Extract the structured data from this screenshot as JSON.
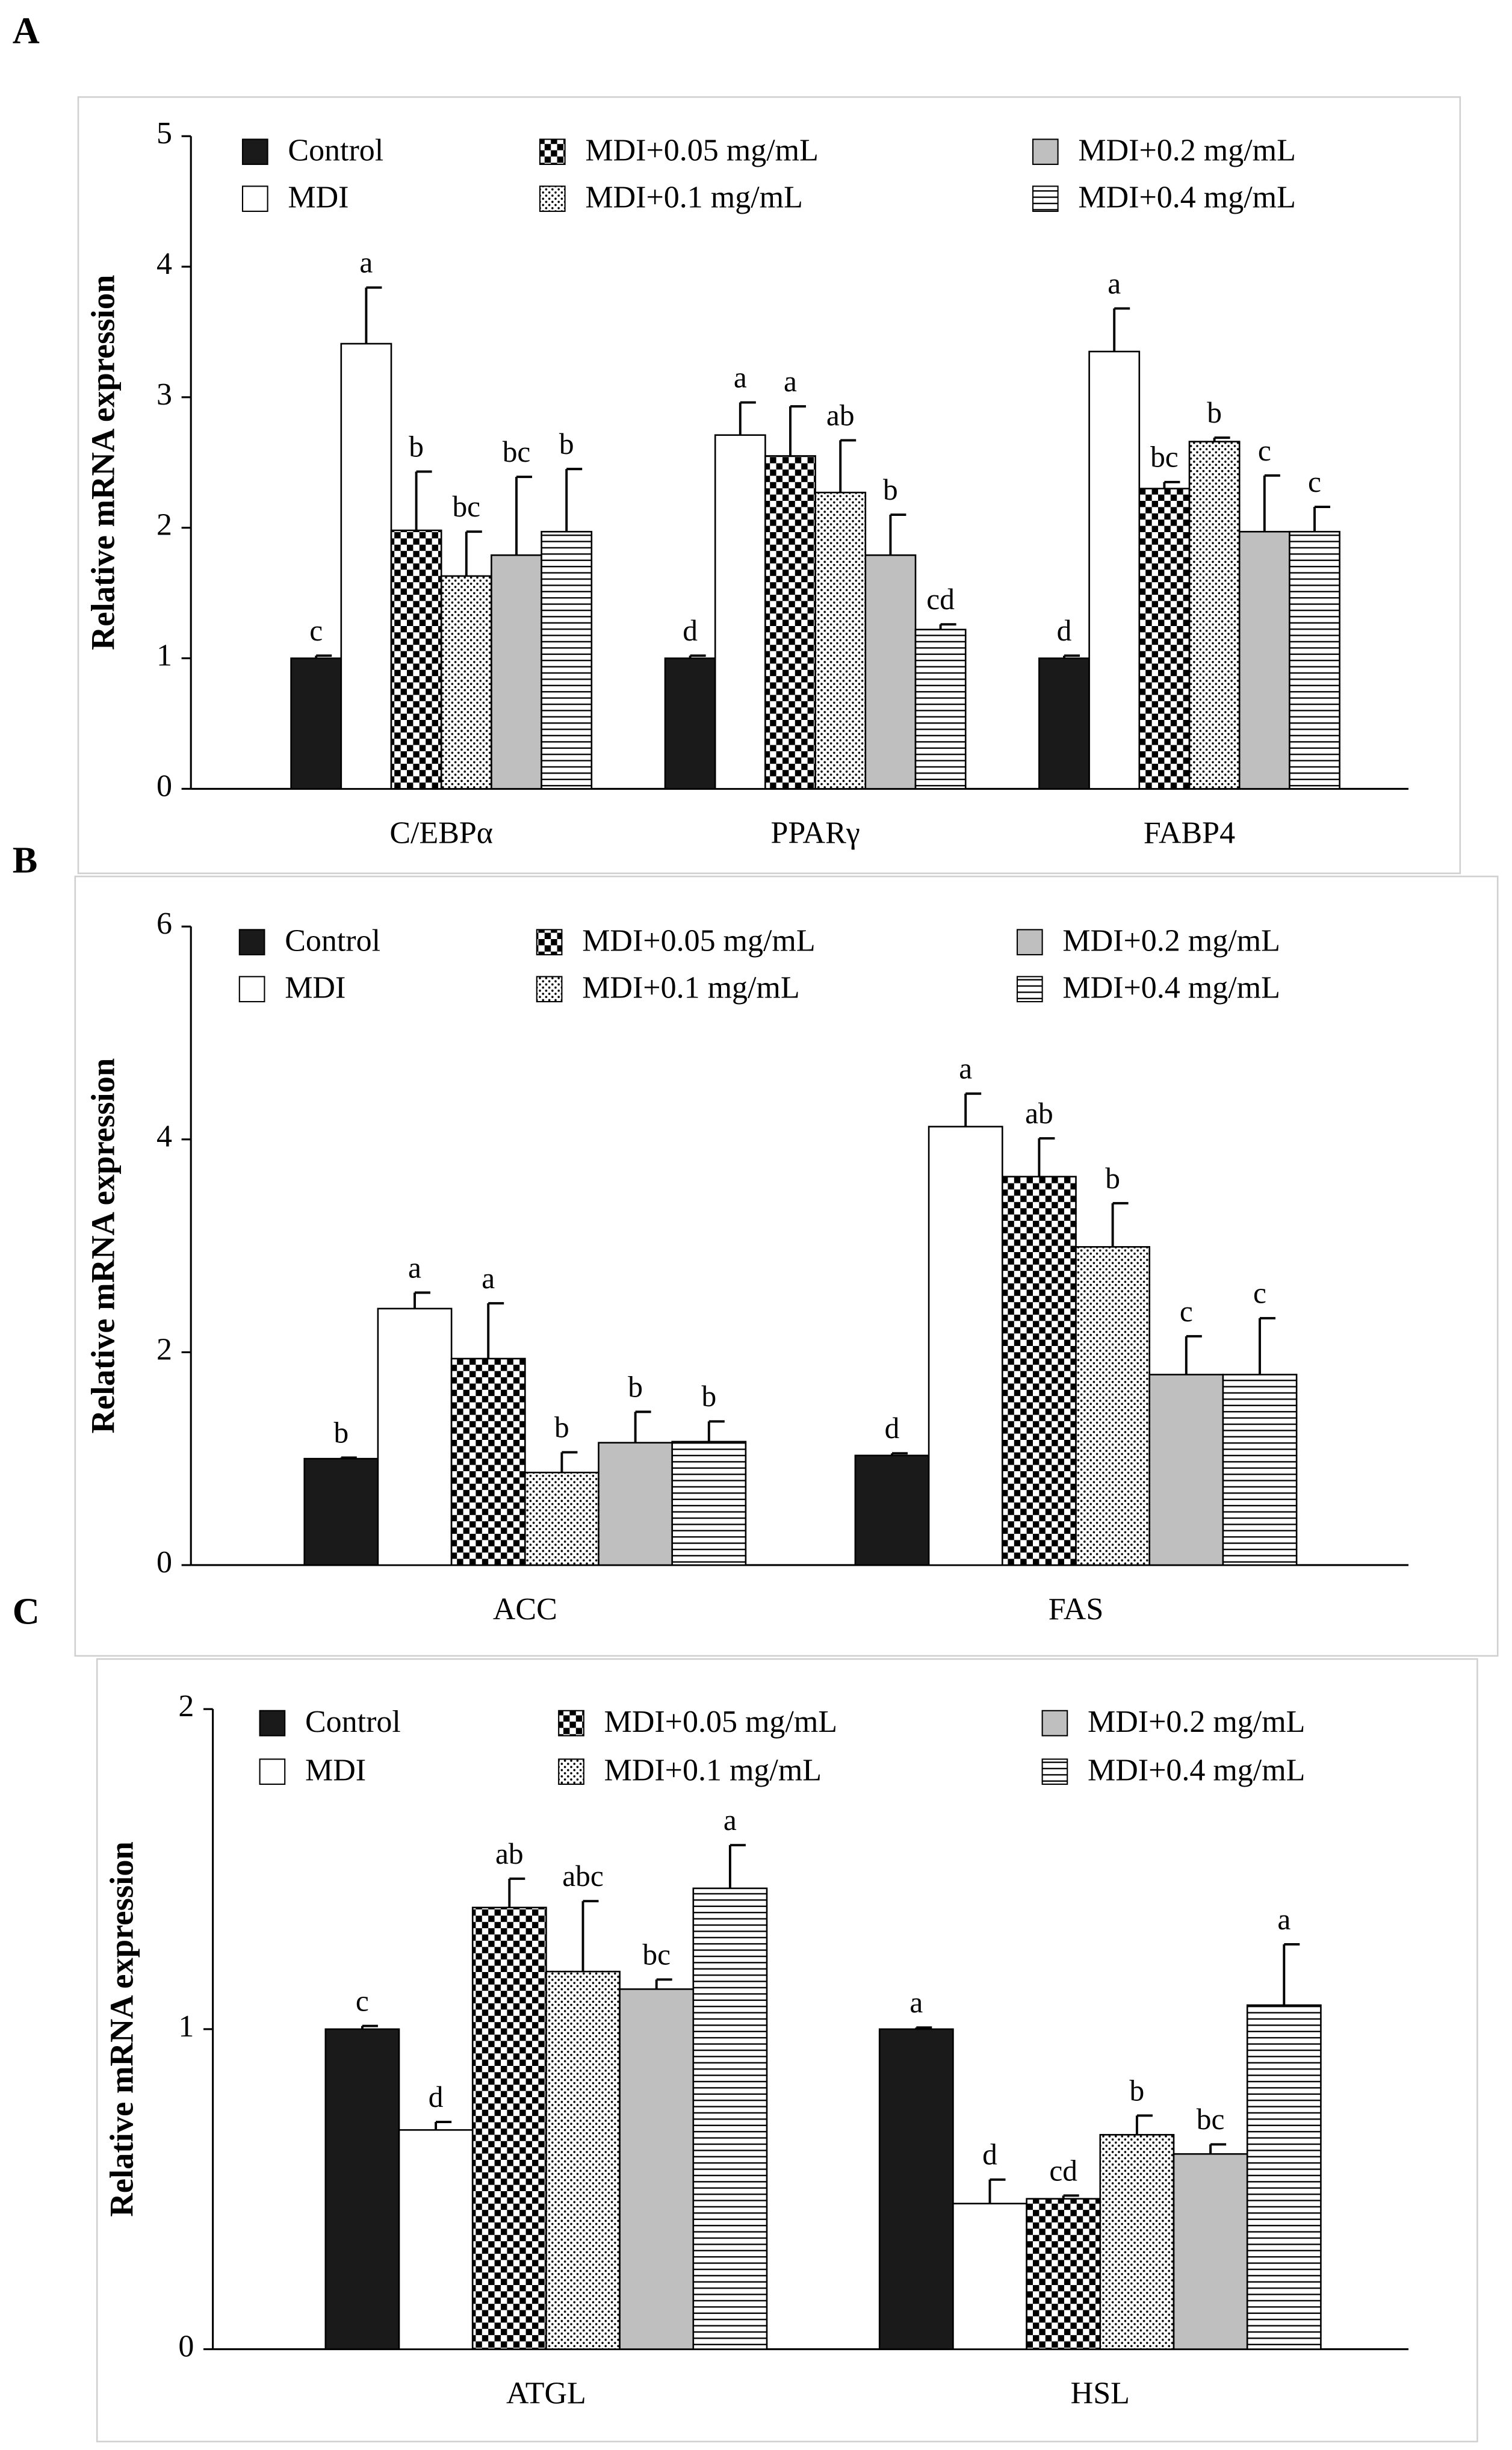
{
  "chart_data": [
    {
      "type": "bar",
      "panel": "A",
      "ylabel": "Relative mRNA expression",
      "categories": [
        "C/EBPα",
        "PPARγ",
        "FABP4"
      ],
      "ylim": [
        0,
        5
      ],
      "yticks": [
        0,
        1,
        2,
        3,
        4,
        5
      ],
      "series": [
        {
          "name": "Control",
          "color": "#1a1a1a",
          "pattern": "solid",
          "values": [
            1,
            1,
            1
          ],
          "errors": [
            0.02,
            0.02,
            0.02
          ],
          "letters": [
            "c",
            "d",
            "d"
          ]
        },
        {
          "name": "MDI",
          "color": "#ffffff",
          "pattern": "solid",
          "values": [
            3.41,
            2.71,
            3.35
          ],
          "errors": [
            0.43,
            0.25,
            0.33
          ],
          "letters": [
            "a",
            "a",
            "a"
          ]
        },
        {
          "name": "MDI+0.05 mg/mL",
          "color": "#000000",
          "pattern": "checker",
          "values": [
            1.98,
            2.55,
            2.3
          ],
          "errors": [
            0.45,
            0.38,
            0.05
          ],
          "letters": [
            "b",
            "a",
            "bc"
          ]
        },
        {
          "name": "MDI+0.1 mg/mL",
          "color": "#000000",
          "pattern": "dots",
          "values": [
            1.63,
            2.27,
            2.66
          ],
          "errors": [
            0.34,
            0.4,
            0.03
          ],
          "letters": [
            "bc",
            "ab",
            "b"
          ]
        },
        {
          "name": "MDI+0.2 mg/mL",
          "color": "#bfbfbf",
          "pattern": "solid",
          "values": [
            1.79,
            1.79,
            1.97
          ],
          "errors": [
            0.6,
            0.31,
            0.43
          ],
          "letters": [
            "bc",
            "b",
            "c"
          ]
        },
        {
          "name": "MDI+0.4 mg/mL",
          "color": "#000000",
          "pattern": "hlines",
          "values": [
            1.97,
            1.22,
            1.97
          ],
          "errors": [
            0.48,
            0.04,
            0.19
          ],
          "letters": [
            "b",
            "cd",
            "c"
          ]
        }
      ]
    },
    {
      "type": "bar",
      "panel": "B",
      "ylabel": "Relative mRNA expression",
      "categories": [
        "ACC",
        "FAS"
      ],
      "ylim": [
        0,
        6
      ],
      "yticks": [
        0,
        2,
        4,
        6
      ],
      "series": [
        {
          "name": "Control",
          "color": "#1a1a1a",
          "pattern": "solid",
          "values": [
            1,
            1.03
          ],
          "errors": [
            0.01,
            0.02
          ],
          "letters": [
            "b",
            "d"
          ]
        },
        {
          "name": "MDI",
          "color": "#ffffff",
          "pattern": "solid",
          "values": [
            2.41,
            4.12
          ],
          "errors": [
            0.15,
            0.31
          ],
          "letters": [
            "a",
            "a"
          ]
        },
        {
          "name": "MDI+0.05 mg/mL",
          "color": "#000000",
          "pattern": "checker",
          "values": [
            1.94,
            3.65
          ],
          "errors": [
            0.52,
            0.36
          ],
          "letters": [
            "a",
            "ab"
          ]
        },
        {
          "name": "MDI+0.1 mg/mL",
          "color": "#000000",
          "pattern": "dots",
          "values": [
            0.87,
            2.99
          ],
          "errors": [
            0.19,
            0.41
          ],
          "letters": [
            "b",
            "b"
          ]
        },
        {
          "name": "MDI+0.2 mg/mL",
          "color": "#bfbfbf",
          "pattern": "solid",
          "values": [
            1.15,
            1.79
          ],
          "errors": [
            0.29,
            0.36
          ],
          "letters": [
            "b",
            "c"
          ]
        },
        {
          "name": "MDI+0.4 mg/mL",
          "color": "#000000",
          "pattern": "hlines",
          "values": [
            1.16,
            1.79
          ],
          "errors": [
            0.19,
            0.53
          ],
          "letters": [
            "b",
            "c"
          ]
        }
      ]
    },
    {
      "type": "bar",
      "panel": "C",
      "ylabel": "Relative mRNA expression",
      "categories": [
        "ATGL",
        "HSL"
      ],
      "ylim": [
        0,
        2
      ],
      "yticks": [
        0,
        1,
        2
      ],
      "series": [
        {
          "name": "Control",
          "color": "#1a1a1a",
          "pattern": "solid",
          "values": [
            1,
            1
          ],
          "errors": [
            0.01,
            0.005
          ],
          "letters": [
            "c",
            "a"
          ]
        },
        {
          "name": "MDI",
          "color": "#ffffff",
          "pattern": "solid",
          "values": [
            0.685,
            0.455
          ],
          "errors": [
            0.025,
            0.075
          ],
          "letters": [
            "d",
            "d"
          ]
        },
        {
          "name": "MDI+0.05 mg/mL",
          "color": "#000000",
          "pattern": "checker",
          "values": [
            1.38,
            0.47
          ],
          "errors": [
            0.09,
            0.01
          ],
          "letters": [
            "ab",
            "cd"
          ]
        },
        {
          "name": "MDI+0.1 mg/mL",
          "color": "#000000",
          "pattern": "dots",
          "values": [
            1.18,
            0.67
          ],
          "errors": [
            0.22,
            0.06
          ],
          "letters": [
            "abc",
            "b"
          ]
        },
        {
          "name": "MDI+0.2 mg/mL",
          "color": "#bfbfbf",
          "pattern": "solid",
          "values": [
            1.125,
            0.61
          ],
          "errors": [
            0.03,
            0.03
          ],
          "letters": [
            "bc",
            "bc"
          ]
        },
        {
          "name": "MDI+0.4 mg/mL",
          "color": "#000000",
          "pattern": "hlines",
          "values": [
            1.44,
            1.075
          ],
          "errors": [
            0.135,
            0.19
          ],
          "letters": [
            "a",
            "a"
          ]
        }
      ]
    }
  ]
}
